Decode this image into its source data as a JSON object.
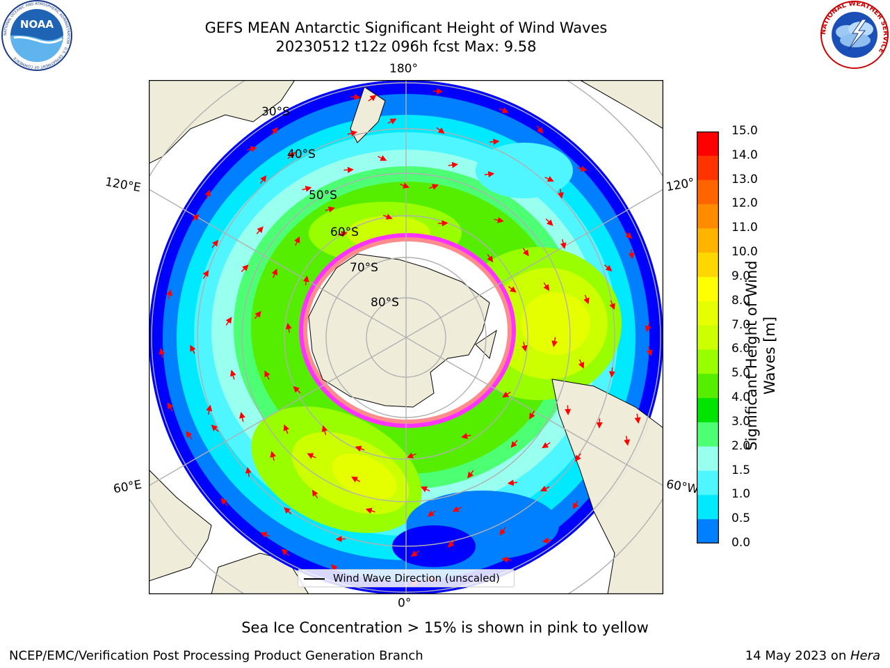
{
  "title": {
    "line1": "GEFS MEAN Antarctic Significant Height of Wind Waves",
    "line2": "20230512 t12z 096h fcst   Max: 9.58"
  },
  "logos": {
    "left": "NOAA",
    "left_ring": "NATIONAL OCEANIC AND ATMOSPHERIC ADMINISTRATION · U.S. DEPARTMENT OF COMMERCE",
    "right_ring": "NATIONAL WEATHER SERVICE"
  },
  "map": {
    "projection": "south-polar-stereographic",
    "lon_labels": {
      "top": "180°",
      "bottom": "0°",
      "upper_left": "120°E",
      "upper_right": "120°",
      "lower_left": "60°E",
      "lower_right": "60°W"
    },
    "lat_labels": [
      "30°S",
      "40°S",
      "50°S",
      "60°S",
      "70°S",
      "80°S"
    ],
    "land_color": "#efedda",
    "ice_colors": [
      "#ff33ff",
      "#ff8c8c",
      "#ffd24d"
    ]
  },
  "colorbar": {
    "label": "Significant Height of Wind Waves [m]",
    "ticks": [
      "15.0",
      "14.0",
      "13.0",
      "12.0",
      "11.0",
      "10.0",
      "9.0",
      "8.0",
      "7.0",
      "6.0",
      "5.0",
      "4.0",
      "3.0",
      "2.0",
      "1.5",
      "1.0",
      "0.5",
      "0.0"
    ],
    "colors_top_to_bottom": [
      "#ff0000",
      "#ff3300",
      "#ff6400",
      "#ff8c00",
      "#ffb400",
      "#ffd700",
      "#ffff00",
      "#e6ff00",
      "#ccff00",
      "#99ff00",
      "#55ee00",
      "#00e400",
      "#4dff73",
      "#99ffee",
      "#4ff5ff",
      "#00e9ff",
      "#0080ff",
      "#0000ff"
    ]
  },
  "legend": {
    "label": "Wind Wave Direction (unscaled)"
  },
  "sea_ice_note": "Sea Ice Concentration > 15% is shown in pink to yellow",
  "footer": {
    "left": "NCEP/EMC/Verification Post Processing Product Generation Branch",
    "right_date": "14 May 2023 on ",
    "right_host": "Hera"
  }
}
